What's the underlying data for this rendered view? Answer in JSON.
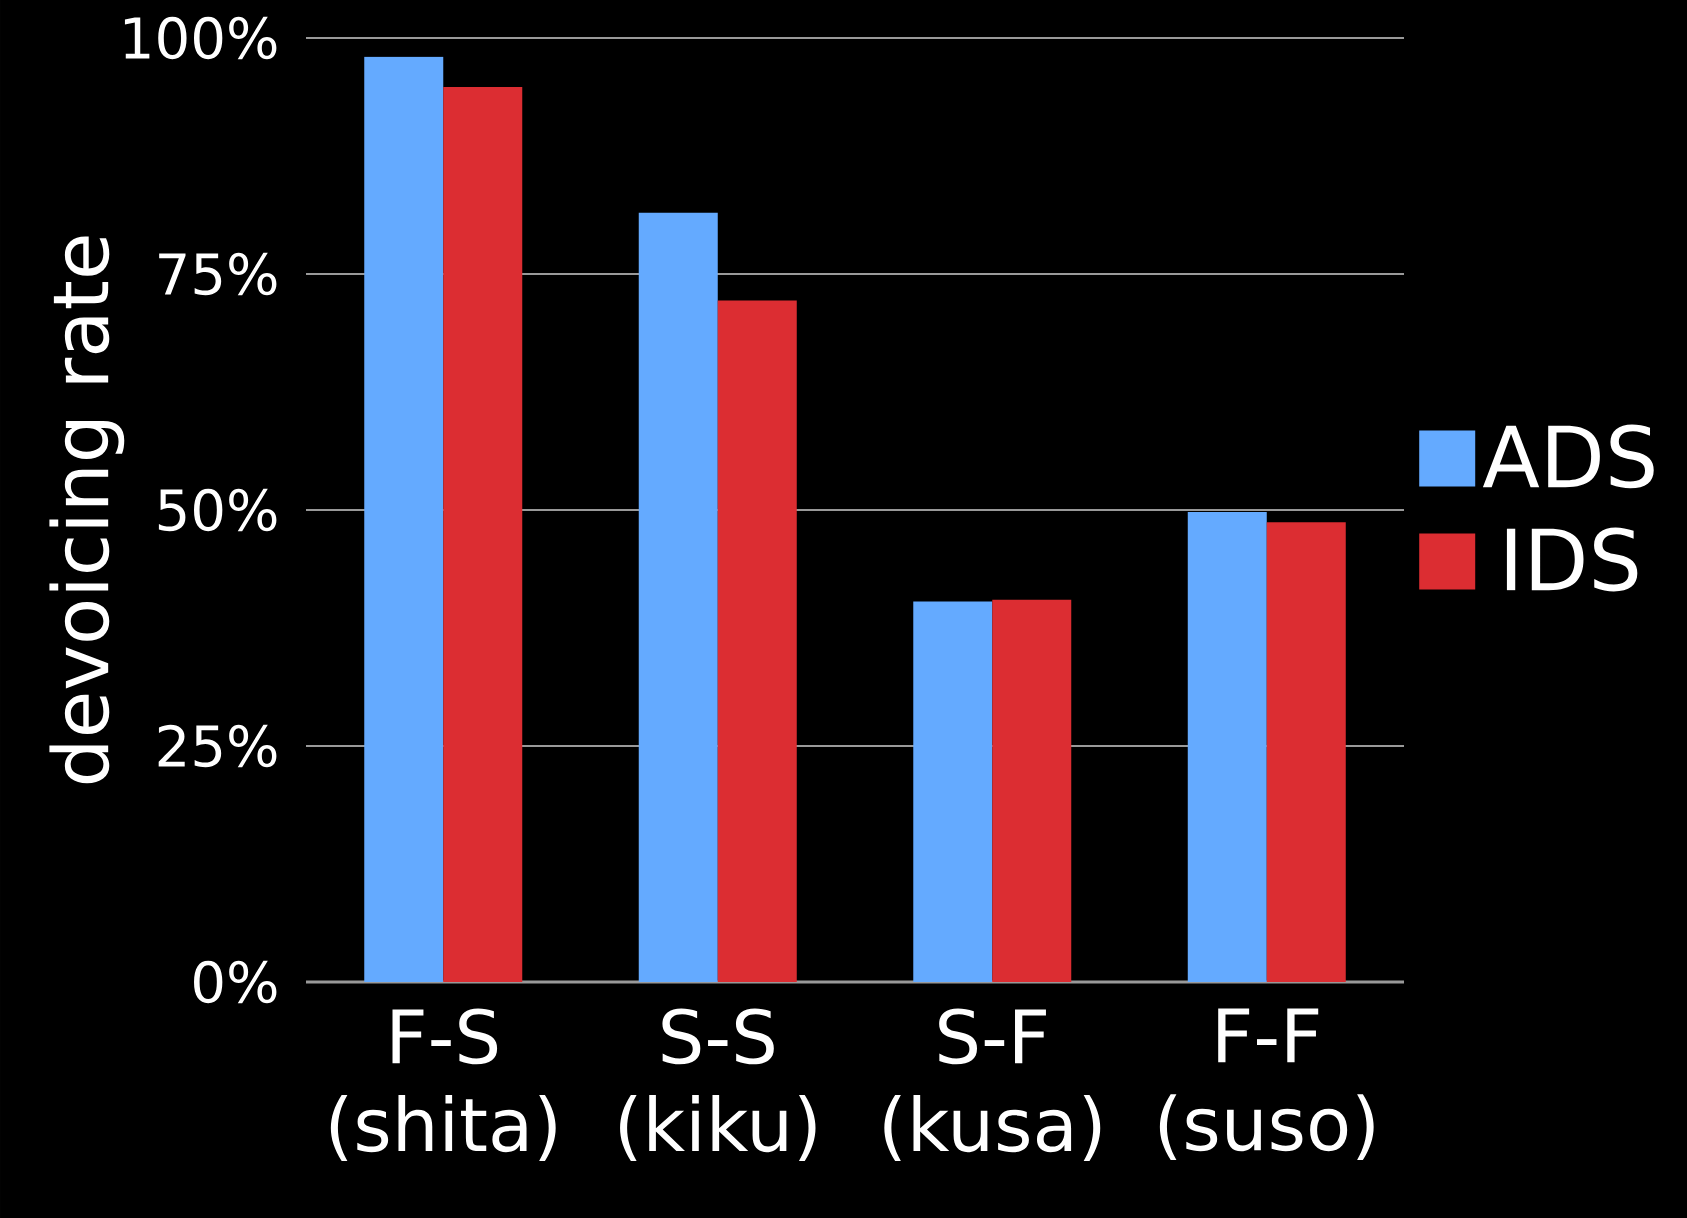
{
  "chart_data": {
    "type": "bar",
    "ylabel": "devoicing rate",
    "categories": [
      "F-S (shita)",
      "S-S (kiku)",
      "S-F (kusa)",
      "F-F (suso)"
    ],
    "series": [
      {
        "name": "ADS",
        "color": "#64aaff",
        "values": [
          98,
          81.5,
          40.3,
          49.8
        ]
      },
      {
        "name": "IDS",
        "color": "#dc2d32",
        "values": [
          94.8,
          72.2,
          40.5,
          48.7
        ]
      }
    ],
    "ylim": [
      0,
      100
    ],
    "yticks": [
      {
        "value": 0,
        "label": "0%"
      },
      {
        "value": 25,
        "label": "25%"
      },
      {
        "value": 50,
        "label": "50%"
      },
      {
        "value": 75,
        "label": "75%"
      },
      {
        "value": 100,
        "label": "100%"
      }
    ],
    "grid": "y",
    "legend": "right"
  }
}
